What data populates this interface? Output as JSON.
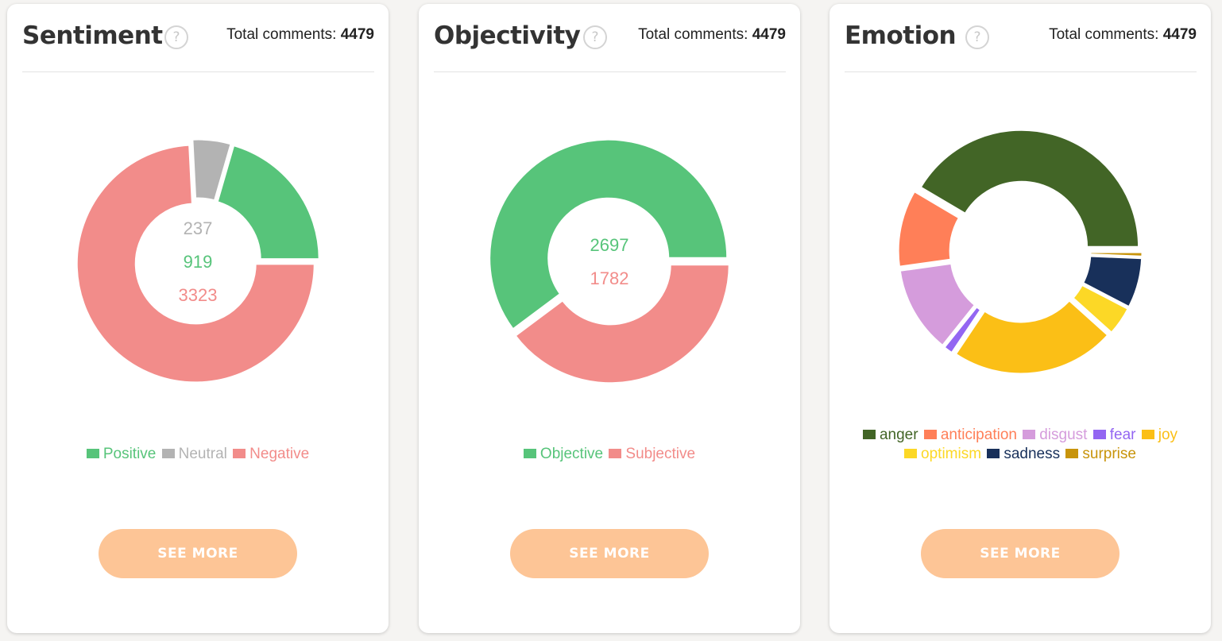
{
  "cards": {
    "sentiment": {
      "title": "Sentiment",
      "help_glyph": "?",
      "total_label": "Total comments: ",
      "total_value": "4479",
      "button_label": "SEE MORE"
    },
    "objectivity": {
      "title": "Objectivity",
      "help_glyph": "?",
      "total_label": "Total comments: ",
      "total_value": "4479",
      "button_label": "SEE MORE"
    },
    "emotion": {
      "title": "Emotion",
      "help_glyph": "?",
      "total_label": "Total comments: ",
      "total_value": "4479",
      "button_label": "SEE MORE"
    }
  },
  "colors": {
    "button": "#fdc596",
    "card_title": "#333333"
  },
  "chart_data": [
    {
      "type": "pie",
      "title": "Sentiment",
      "donut": true,
      "legend_position": "bottom",
      "series": [
        {
          "name": "Positive",
          "value": 919,
          "color": "#57c47a"
        },
        {
          "name": "Neutral",
          "value": 237,
          "color": "#b3b3b3"
        },
        {
          "name": "Negative",
          "value": 3323,
          "color": "#f28c8a"
        }
      ],
      "center_labels": [
        "237",
        "919",
        "3323"
      ],
      "center_label_colors": [
        "#b3b3b3",
        "#57c47a",
        "#f28c8a"
      ]
    },
    {
      "type": "pie",
      "title": "Objectivity",
      "donut": true,
      "legend_position": "bottom",
      "series": [
        {
          "name": "Objective",
          "value": 2697,
          "color": "#57c47a"
        },
        {
          "name": "Subjective",
          "value": 1782,
          "color": "#f28c8a"
        }
      ],
      "center_labels": [
        "2697",
        "1782"
      ],
      "center_label_colors": [
        "#57c47a",
        "#f28c8a"
      ]
    },
    {
      "type": "pie",
      "title": "Emotion",
      "donut": true,
      "legend_position": "bottom",
      "series": [
        {
          "name": "anger",
          "value": 1550,
          "color": "#426526"
        },
        {
          "name": "anticipation",
          "value": 400,
          "color": "#ff7f58"
        },
        {
          "name": "disgust",
          "value": 450,
          "color": "#d59cdc"
        },
        {
          "name": "fear",
          "value": 50,
          "color": "#9366f2"
        },
        {
          "name": "joy",
          "value": 850,
          "color": "#fbbf16"
        },
        {
          "name": "optimism",
          "value": 150,
          "color": "#fcd826"
        },
        {
          "name": "sadness",
          "value": 260,
          "color": "#18305a"
        },
        {
          "name": "surprise",
          "value": 25,
          "color": "#c8940b"
        }
      ],
      "center_labels": []
    }
  ]
}
